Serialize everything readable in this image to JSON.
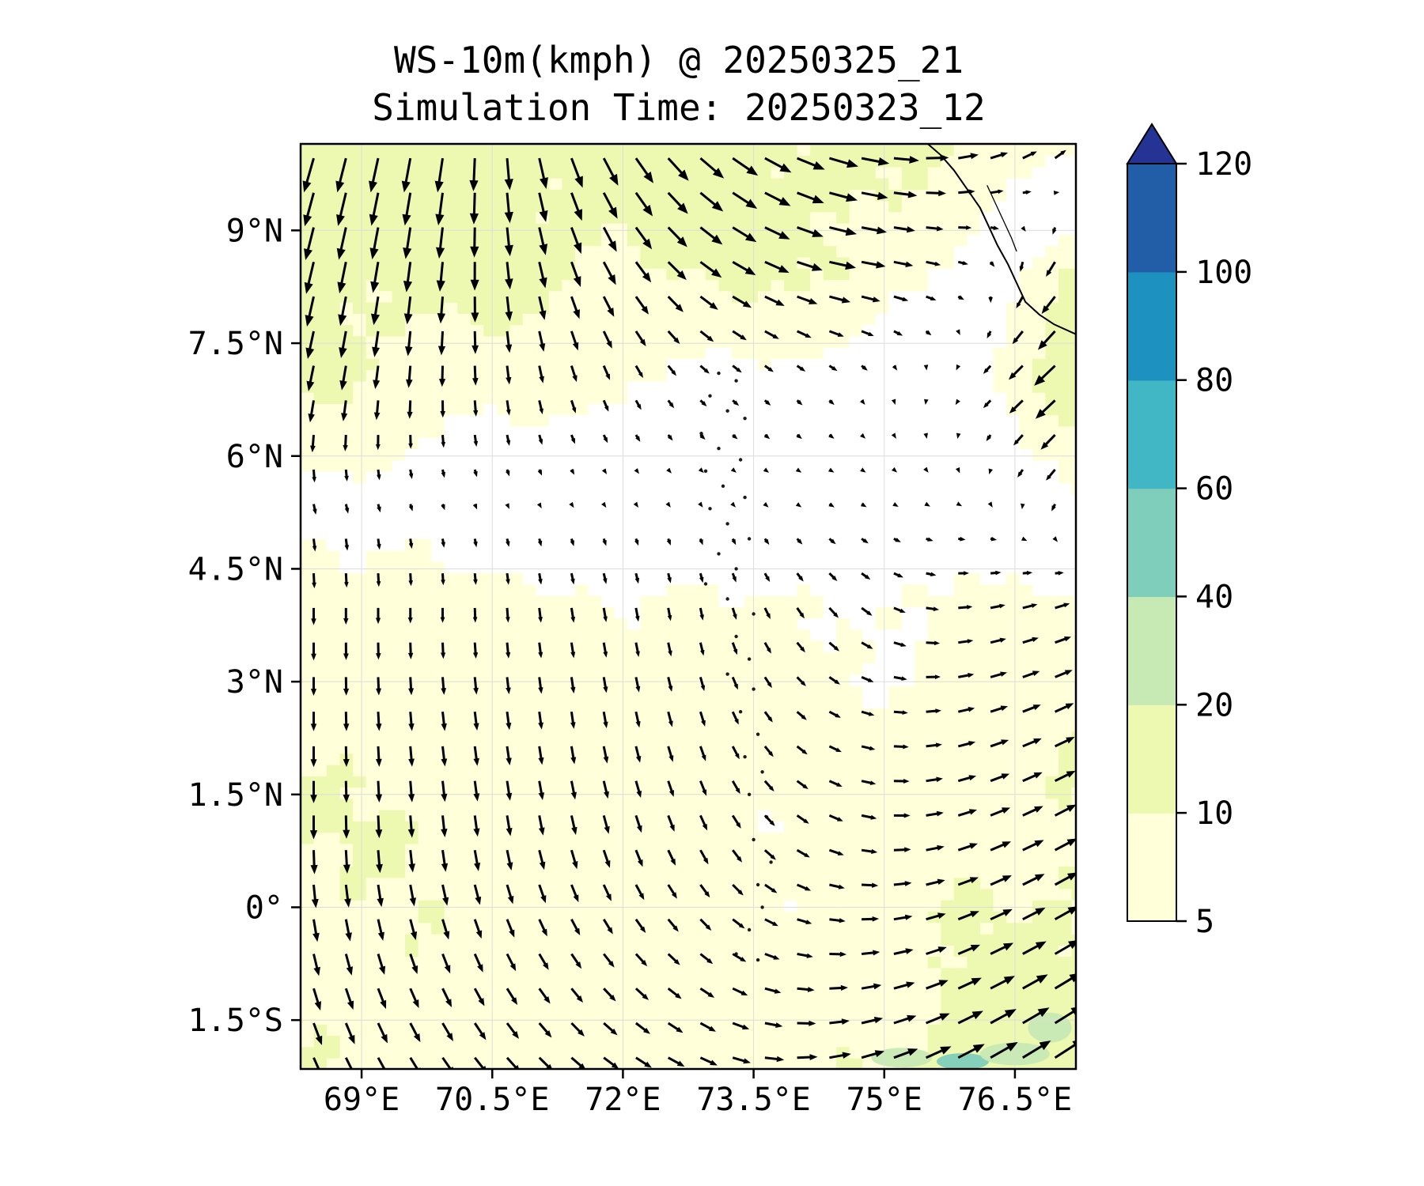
{
  "title": {
    "line1": "WS-10m(kmph) @ 20250325_21",
    "line2": "Simulation Time: 20250323_12"
  },
  "axes": {
    "x_ticks": [
      "69°E",
      "70.5°E",
      "72°E",
      "73.5°E",
      "75°E",
      "76.5°E"
    ],
    "x_tick_values": [
      69,
      70.5,
      72,
      73.5,
      75,
      76.5
    ],
    "y_ticks": [
      "9°N",
      "7.5°N",
      "6°N",
      "4.5°N",
      "3°N",
      "1.5°N",
      "0°",
      "1.5°S"
    ],
    "y_tick_values": [
      9,
      7.5,
      6,
      4.5,
      3,
      1.5,
      0,
      -1.5
    ]
  },
  "colorbar": {
    "levels": [
      5,
      10,
      20,
      40,
      60,
      80,
      100,
      120
    ],
    "tick_labels": [
      "5",
      "10",
      "20",
      "40",
      "60",
      "80",
      "100",
      "120"
    ],
    "colors": [
      "#ffffd9",
      "#edf8b1",
      "#c7e9b4",
      "#7fcdbb",
      "#41b6c4",
      "#1d91c0",
      "#225ea8"
    ],
    "extend_color": "#253494",
    "below_min_color": "#ffffff"
  },
  "chart_data": {
    "type": "quiver_map",
    "variable": "WS-10m",
    "units": "kmph",
    "valid_time": "20250325_21",
    "simulation_time": "20250323_12",
    "lon_range": [
      68.3,
      77.2
    ],
    "lat_range": [
      -2.15,
      10.15
    ],
    "contour_levels": [
      5,
      10,
      20,
      40,
      60,
      80,
      100,
      120
    ],
    "contour_colors": [
      "#ffffd9",
      "#edf8b1",
      "#c7e9b4",
      "#7fcdbb",
      "#41b6c4",
      "#1d91c0",
      "#225ea8"
    ],
    "wind_field": {
      "lons": [
        68.5,
        70,
        71.5,
        73,
        74.5,
        76,
        77.2
      ],
      "lats": [
        -2,
        -0.5,
        1,
        2.5,
        4,
        5.5,
        7,
        8.5,
        10
      ],
      "u": [
        [
          4,
          5,
          6,
          7,
          9,
          11,
          12
        ],
        [
          2,
          3,
          4,
          5,
          7,
          9,
          10
        ],
        [
          0,
          1,
          2,
          3,
          6,
          8,
          9
        ],
        [
          0,
          1,
          1,
          2,
          5,
          7,
          8
        ],
        [
          0,
          0,
          1,
          1,
          4,
          6,
          6
        ],
        [
          1,
          1,
          1,
          1,
          2,
          1,
          -3
        ],
        [
          -2,
          0,
          2,
          3,
          2,
          -2,
          -11
        ],
        [
          -3,
          -1,
          4,
          9,
          11,
          3,
          -6
        ],
        [
          -4,
          -2,
          5,
          10,
          12,
          8,
          4
        ]
      ],
      "v": [
        [
          -9,
          -7,
          -5,
          -3,
          2,
          6,
          8
        ],
        [
          -9,
          -8,
          -6,
          -4,
          0,
          4,
          6
        ],
        [
          -10,
          -9,
          -8,
          -6,
          -2,
          3,
          5
        ],
        [
          -8,
          -8,
          -7,
          -6,
          -2,
          2,
          4
        ],
        [
          -7,
          -6,
          -6,
          -5,
          -4,
          1,
          2
        ],
        [
          -4,
          -2,
          -1,
          -1,
          -1,
          -1,
          -4
        ],
        [
          -10,
          -8,
          -6,
          -2.5,
          -2,
          -2,
          -10
        ],
        [
          -13,
          -12,
          -10,
          -6,
          -2,
          -1,
          -8
        ],
        [
          -14,
          -14,
          -12,
          -8,
          -3,
          2,
          4
        ]
      ]
    },
    "arrow_grid": {
      "lon_start": 68.45,
      "lon_step": 0.37,
      "n_lon": 24,
      "lat_start": -2.0,
      "lat_step": 0.46,
      "n_lat": 27
    },
    "arrow_scale": 3.1
  },
  "map": {
    "coastline": [
      [
        75.5,
        10.15
      ],
      [
        75.65,
        10.0
      ],
      [
        75.8,
        9.8
      ],
      [
        75.95,
        9.55
      ],
      [
        76.1,
        9.3
      ],
      [
        76.2,
        9.05
      ],
      [
        76.3,
        8.8
      ],
      [
        76.42,
        8.55
      ],
      [
        76.52,
        8.3
      ],
      [
        76.62,
        8.05
      ],
      [
        76.78,
        7.88
      ],
      [
        76.95,
        7.75
      ],
      [
        77.2,
        7.62
      ]
    ],
    "lagoon": [
      [
        76.18,
        9.6
      ],
      [
        76.28,
        9.35
      ],
      [
        76.38,
        9.1
      ],
      [
        76.46,
        8.9
      ],
      [
        76.52,
        8.72
      ]
    ],
    "islands": [
      [
        73.1,
        7.1
      ],
      [
        73.3,
        7.0
      ],
      [
        73.0,
        6.8
      ],
      [
        73.2,
        6.6
      ],
      [
        73.4,
        6.5
      ],
      [
        72.9,
        6.3
      ],
      [
        73.1,
        6.1
      ],
      [
        73.35,
        5.95
      ],
      [
        72.95,
        5.8
      ],
      [
        73.15,
        5.6
      ],
      [
        73.4,
        5.45
      ],
      [
        73.0,
        5.3
      ],
      [
        73.2,
        5.1
      ],
      [
        73.45,
        4.9
      ],
      [
        73.1,
        4.7
      ],
      [
        73.3,
        4.5
      ],
      [
        72.95,
        4.3
      ],
      [
        73.2,
        4.1
      ],
      [
        73.5,
        3.9
      ],
      [
        73.3,
        3.6
      ],
      [
        73.45,
        3.3
      ],
      [
        73.2,
        3.1
      ],
      [
        73.5,
        2.9
      ],
      [
        73.35,
        2.6
      ],
      [
        73.55,
        2.3
      ],
      [
        73.4,
        2.0
      ],
      [
        73.6,
        1.8
      ],
      [
        73.45,
        1.5
      ],
      [
        73.65,
        1.2
      ],
      [
        73.5,
        0.9
      ],
      [
        73.7,
        0.6
      ],
      [
        73.55,
        0.3
      ],
      [
        73.6,
        0.0
      ],
      [
        73.45,
        -0.3
      ],
      [
        73.3,
        -0.62
      ],
      [
        73.55,
        -0.7
      ]
    ],
    "patches": [
      {
        "lon": 75.2,
        "lat": -2.0,
        "rx": 0.35,
        "ry": 0.13,
        "color": "#c7e9b4"
      },
      {
        "lon": 75.9,
        "lat": -2.05,
        "rx": 0.3,
        "ry": 0.11,
        "color": "#7fcdbb"
      },
      {
        "lon": 76.5,
        "lat": -1.95,
        "rx": 0.4,
        "ry": 0.15,
        "color": "#c7e9b4"
      },
      {
        "lon": 76.9,
        "lat": -1.6,
        "rx": 0.25,
        "ry": 0.2,
        "color": "#c7e9b4"
      }
    ]
  }
}
